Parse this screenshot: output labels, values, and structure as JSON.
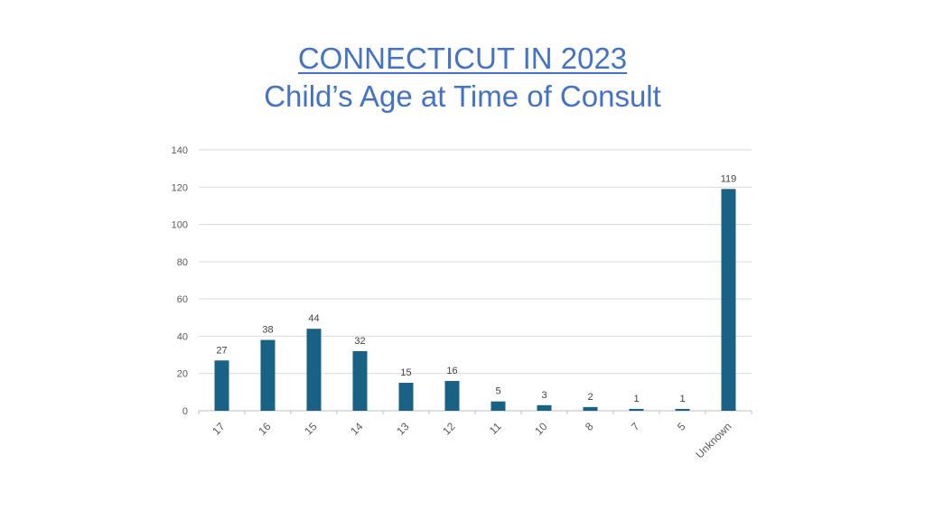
{
  "title": {
    "line1": "CONNECTICUT IN 2023",
    "line2": "Child’s Age at Time of Consult"
  },
  "chart_data": {
    "type": "bar",
    "categories": [
      "17",
      "16",
      "15",
      "14",
      "13",
      "12",
      "11",
      "10",
      "8",
      "7",
      "5",
      "Unknown"
    ],
    "values": [
      27,
      38,
      44,
      32,
      15,
      16,
      5,
      3,
      2,
      1,
      1,
      119
    ],
    "title": "CONNECTICUT IN 2023 Child’s Age at Time of Consult",
    "xlabel": "",
    "ylabel": "",
    "ylim": [
      0,
      140
    ],
    "yticks": [
      0,
      20,
      40,
      60,
      80,
      100,
      120,
      140
    ],
    "grid": true,
    "legend": "none",
    "bar_color": "#1a6285"
  }
}
